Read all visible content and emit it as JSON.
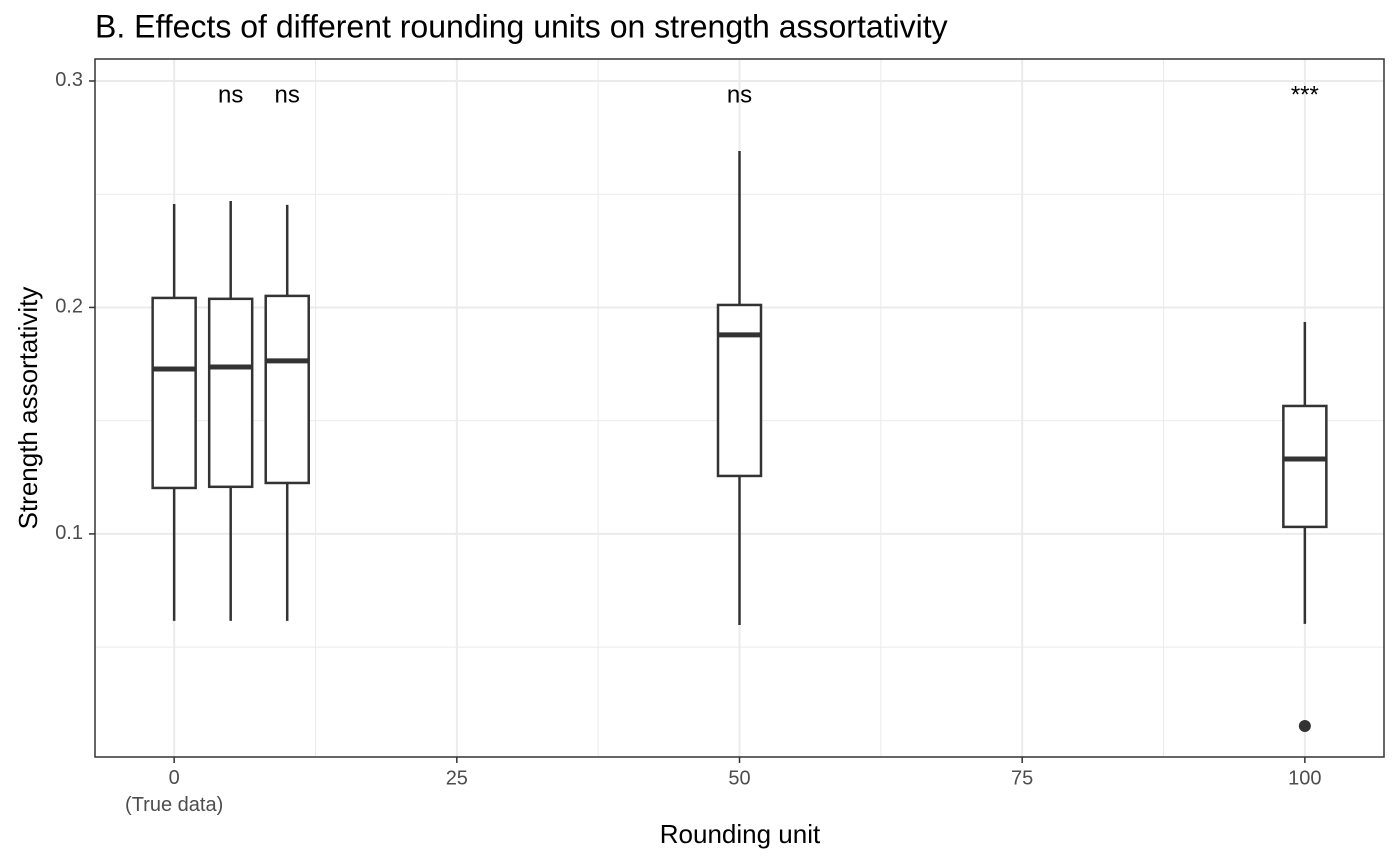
{
  "chart_data": {
    "type": "box",
    "title": "B. Effects of different rounding units on strength assortativity",
    "x_label": "Rounding unit",
    "y_label": "Strength assortativity",
    "x": [
      0,
      5,
      10,
      50,
      100
    ],
    "whisker_low": [
      0.0616,
      0.0616,
      0.0616,
      0.0598,
      0.0603
    ],
    "q1": [
      0.1203,
      0.1208,
      0.1225,
      0.1256,
      0.1031
    ],
    "median": [
      0.1728,
      0.1737,
      0.1764,
      0.1879,
      0.1331
    ],
    "q3": [
      0.2042,
      0.2038,
      0.2051,
      0.2011,
      0.1565
    ],
    "whisker_high": [
      0.2457,
      0.247,
      0.2453,
      0.2691,
      0.1936
    ],
    "outliers": [
      [],
      [],
      [],
      [],
      [
        0.0152
      ]
    ],
    "significance": [
      null,
      "ns",
      "ns",
      "ns",
      "***"
    ],
    "color": "#333333",
    "fill": "#ffffff",
    "xlim": [
      -7,
      107
    ],
    "ylim": [
      0.0015,
      0.3097
    ],
    "xticks": [
      {
        "value": 0,
        "label": "0\n(True data)"
      },
      25,
      50,
      75,
      100
    ],
    "yticks": [
      0.1,
      0.2,
      0.3
    ],
    "grid": true
  }
}
